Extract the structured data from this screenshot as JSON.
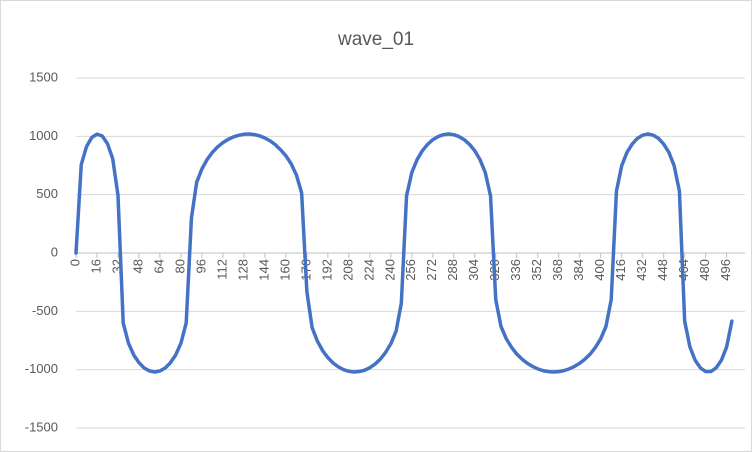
{
  "chart_data": {
    "type": "line",
    "title": "wave_01",
    "x": [
      0,
      4,
      8,
      12,
      16,
      20,
      24,
      28,
      32,
      36,
      40,
      44,
      48,
      52,
      56,
      60,
      64,
      68,
      72,
      76,
      80,
      84,
      88,
      92,
      96,
      100,
      104,
      108,
      112,
      116,
      120,
      124,
      128,
      132,
      136,
      140,
      144,
      148,
      152,
      156,
      160,
      164,
      168,
      172,
      176,
      180,
      184,
      188,
      192,
      196,
      200,
      204,
      208,
      212,
      216,
      220,
      224,
      228,
      232,
      236,
      240,
      244,
      248,
      252,
      256,
      260,
      264,
      268,
      272,
      276,
      280,
      284,
      288,
      292,
      296,
      300,
      304,
      308,
      312,
      316,
      320,
      324,
      328,
      332,
      336,
      340,
      344,
      348,
      352,
      356,
      360,
      364,
      368,
      372,
      376,
      380,
      384,
      388,
      392,
      396,
      400,
      404,
      408,
      412,
      416,
      420,
      424,
      428,
      432,
      436,
      440,
      444,
      448,
      452,
      456,
      460,
      464,
      468,
      472,
      476,
      480,
      484,
      488,
      492,
      496,
      500
    ],
    "series": [
      {
        "name": "wave_01",
        "color": "#4472c4",
        "values": [
          0,
          758,
          912,
          990,
          1019,
          1003,
          937,
          807,
          495,
          -600,
          -773,
          -874,
          -940,
          -986,
          -1011,
          -1020,
          -1011,
          -986,
          -940,
          -874,
          -773,
          -600,
          300,
          606,
          721,
          802,
          863,
          910,
          946,
          974,
          995,
          1009,
          1018,
          1020,
          1015,
          1004,
          986,
          961,
          928,
          884,
          833,
          765,
          670,
          515,
          -330,
          -640,
          -755,
          -837,
          -897,
          -943,
          -976,
          -1000,
          -1014,
          -1020,
          -1016,
          -1005,
          -983,
          -952,
          -910,
          -852,
          -778,
          -670,
          -430,
          490,
          690,
          800,
          876,
          931,
          971,
          998,
          1014,
          1020,
          1014,
          998,
          971,
          931,
          876,
          800,
          690,
          490,
          -400,
          -630,
          -735,
          -808,
          -866,
          -910,
          -945,
          -972,
          -993,
          -1008,
          -1017,
          -1020,
          -1017,
          -1008,
          -993,
          -972,
          -945,
          -910,
          -866,
          -808,
          -735,
          -630,
          -400,
          530,
          748,
          862,
          934,
          983,
          1010,
          1020,
          1010,
          983,
          934,
          862,
          748,
          530,
          -584,
          -805,
          -919,
          -985,
          -1016,
          -1016,
          -985,
          -919,
          -805,
          -584
        ]
      }
    ],
    "xlim": [
      0,
      510
    ],
    "xticks": [
      0,
      16,
      32,
      48,
      64,
      80,
      96,
      112,
      128,
      144,
      160,
      176,
      192,
      208,
      224,
      240,
      256,
      272,
      288,
      304,
      320,
      336,
      352,
      368,
      384,
      400,
      416,
      432,
      448,
      464,
      480,
      496
    ],
    "ylim": [
      -1500,
      1500
    ],
    "yticks": [
      -1500,
      -1000,
      -500,
      0,
      500,
      1000,
      1500
    ],
    "grid": true
  }
}
